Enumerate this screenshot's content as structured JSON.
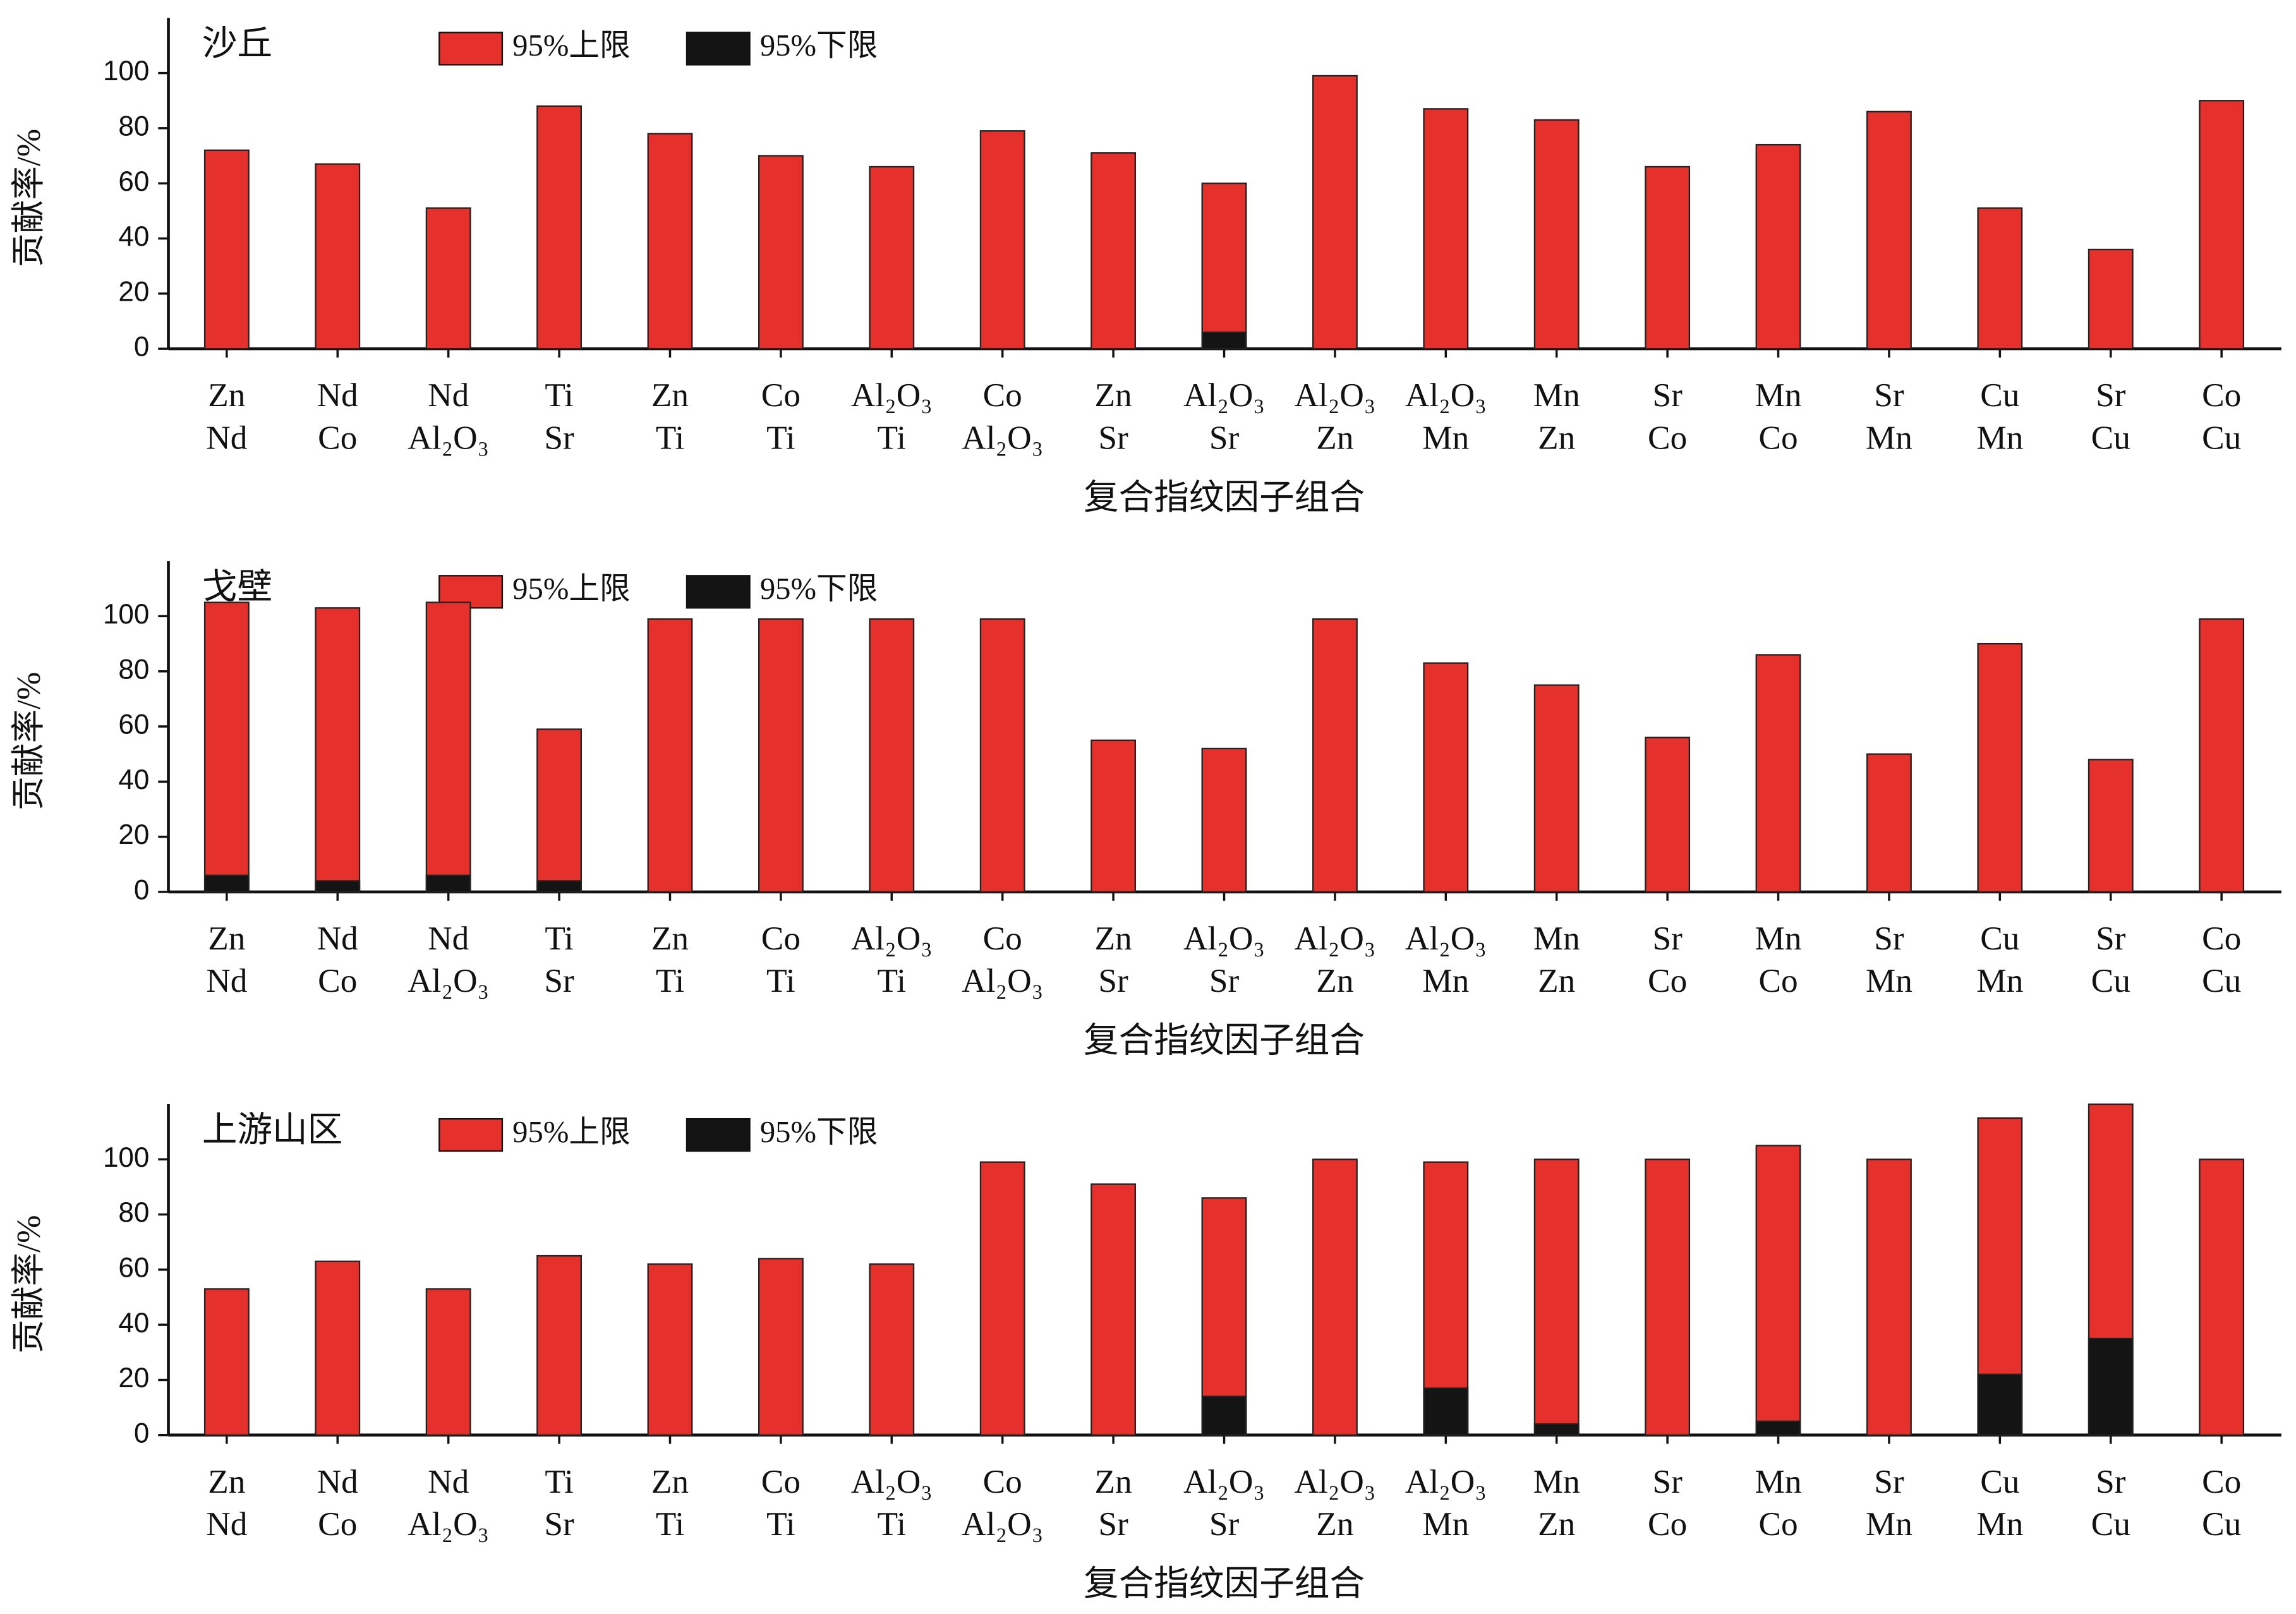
{
  "chart_data": [
    {
      "type": "bar",
      "title": "沙丘",
      "xlabel": "复合指纹因子组合",
      "ylabel": "贡献率/%",
      "categories": [
        [
          "Zn",
          "Nd"
        ],
        [
          "Nd",
          "Co"
        ],
        [
          "Nd",
          "Al₂O₃"
        ],
        [
          "Ti",
          "Sr"
        ],
        [
          "Zn",
          "Ti"
        ],
        [
          "Co",
          "Ti"
        ],
        [
          "Al₂O₃",
          "Ti"
        ],
        [
          "Co",
          "Al₂O₃"
        ],
        [
          "Zn",
          "Sr"
        ],
        [
          "Al₂O₃",
          "Sr"
        ],
        [
          "Al₂O₃",
          "Zn"
        ],
        [
          "Al₂O₃",
          "Mn"
        ],
        [
          "Mn",
          "Zn"
        ],
        [
          "Sr",
          "Co"
        ],
        [
          "Mn",
          "Co"
        ],
        [
          "Sr",
          "Mn"
        ],
        [
          "Cu",
          "Mn"
        ],
        [
          "Sr",
          "Cu"
        ],
        [
          "Co",
          "Cu"
        ]
      ],
      "series": [
        {
          "name": "95%上限",
          "color": "#e5302b",
          "values": [
            72,
            67,
            51,
            88,
            78,
            70,
            66,
            79,
            71,
            60,
            99,
            87,
            83,
            66,
            74,
            86,
            51,
            36,
            90
          ]
        },
        {
          "name": "95%下限",
          "color": "#141414",
          "values": [
            0,
            0,
            0,
            0,
            0,
            0,
            0,
            0,
            0,
            6,
            0,
            0,
            0,
            0,
            0,
            0,
            0,
            0,
            0
          ]
        }
      ],
      "ylim": [
        0,
        120
      ],
      "yticks": [
        0,
        20,
        40,
        60,
        80,
        100
      ]
    },
    {
      "type": "bar",
      "title": "戈壁",
      "xlabel": "复合指纹因子组合",
      "ylabel": "贡献率/%",
      "categories": [
        [
          "Zn",
          "Nd"
        ],
        [
          "Nd",
          "Co"
        ],
        [
          "Nd",
          "Al₂O₃"
        ],
        [
          "Ti",
          "Sr"
        ],
        [
          "Zn",
          "Ti"
        ],
        [
          "Co",
          "Ti"
        ],
        [
          "Al₂O₃",
          "Ti"
        ],
        [
          "Co",
          "Al₂O₃"
        ],
        [
          "Zn",
          "Sr"
        ],
        [
          "Al₂O₃",
          "Sr"
        ],
        [
          "Al₂O₃",
          "Zn"
        ],
        [
          "Al₂O₃",
          "Mn"
        ],
        [
          "Mn",
          "Zn"
        ],
        [
          "Sr",
          "Co"
        ],
        [
          "Mn",
          "Co"
        ],
        [
          "Sr",
          "Mn"
        ],
        [
          "Cu",
          "Mn"
        ],
        [
          "Sr",
          "Cu"
        ],
        [
          "Co",
          "Cu"
        ]
      ],
      "series": [
        {
          "name": "95%上限",
          "color": "#e5302b",
          "values": [
            105,
            103,
            105,
            59,
            99,
            99,
            99,
            99,
            55,
            52,
            99,
            83,
            75,
            56,
            86,
            50,
            90,
            48,
            99
          ]
        },
        {
          "name": "95%下限",
          "color": "#141414",
          "values": [
            6,
            4,
            6,
            4,
            0,
            0,
            0,
            0,
            0,
            0,
            0,
            0,
            0,
            0,
            0,
            0,
            0,
            0,
            0
          ]
        }
      ],
      "ylim": [
        0,
        120
      ],
      "yticks": [
        0,
        20,
        40,
        60,
        80,
        100
      ]
    },
    {
      "type": "bar",
      "title": "上游山区",
      "xlabel": "复合指纹因子组合",
      "ylabel": "贡献率/%",
      "categories": [
        [
          "Zn",
          "Nd"
        ],
        [
          "Nd",
          "Co"
        ],
        [
          "Nd",
          "Al₂O₃"
        ],
        [
          "Ti",
          "Sr"
        ],
        [
          "Zn",
          "Ti"
        ],
        [
          "Co",
          "Ti"
        ],
        [
          "Al₂O₃",
          "Ti"
        ],
        [
          "Co",
          "Al₂O₃"
        ],
        [
          "Zn",
          "Sr"
        ],
        [
          "Al₂O₃",
          "Sr"
        ],
        [
          "Al₂O₃",
          "Zn"
        ],
        [
          "Al₂O₃",
          "Mn"
        ],
        [
          "Mn",
          "Zn"
        ],
        [
          "Sr",
          "Co"
        ],
        [
          "Mn",
          "Co"
        ],
        [
          "Sr",
          "Mn"
        ],
        [
          "Cu",
          "Mn"
        ],
        [
          "Sr",
          "Cu"
        ],
        [
          "Co",
          "Cu"
        ]
      ],
      "series": [
        {
          "name": "95%上限",
          "color": "#e5302b",
          "values": [
            53,
            63,
            53,
            65,
            62,
            64,
            62,
            99,
            91,
            86,
            100,
            99,
            100,
            100,
            105,
            100,
            115,
            120,
            100
          ]
        },
        {
          "name": "95%下限",
          "color": "#141414",
          "values": [
            0,
            0,
            0,
            0,
            0,
            0,
            0,
            0,
            0,
            14,
            0,
            17,
            4,
            0,
            5,
            0,
            22,
            35,
            0
          ]
        }
      ],
      "ylim": [
        0,
        120
      ],
      "yticks": [
        0,
        20,
        40,
        60,
        80,
        100
      ]
    }
  ]
}
